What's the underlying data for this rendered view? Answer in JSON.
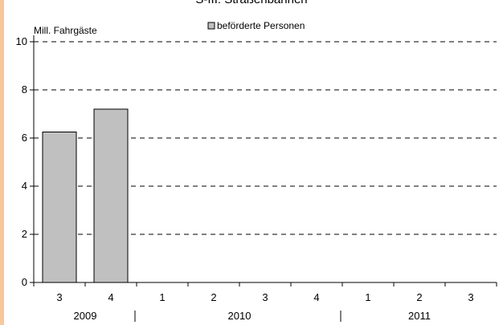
{
  "chart_data": {
    "type": "bar",
    "title": "S-III: Straßenbahnen",
    "ylabel": "Mill. Fahrgäste",
    "ylim": [
      0,
      10
    ],
    "yticks": [
      0,
      2,
      4,
      6,
      8,
      10
    ],
    "grid": "dashed horizontal",
    "legend": "top-center",
    "categories": [
      "3",
      "4",
      "1",
      "2",
      "3",
      "4",
      "1",
      "2",
      "3"
    ],
    "groups": [
      {
        "label": "2009",
        "span": 2
      },
      {
        "label": "2010",
        "span": 4
      },
      {
        "label": "2011",
        "span": 3
      }
    ],
    "series": [
      {
        "name": "beförderte Personen",
        "color": "#c0c0c0",
        "values": [
          6.25,
          7.2,
          null,
          null,
          null,
          null,
          null,
          null,
          null
        ]
      }
    ]
  }
}
